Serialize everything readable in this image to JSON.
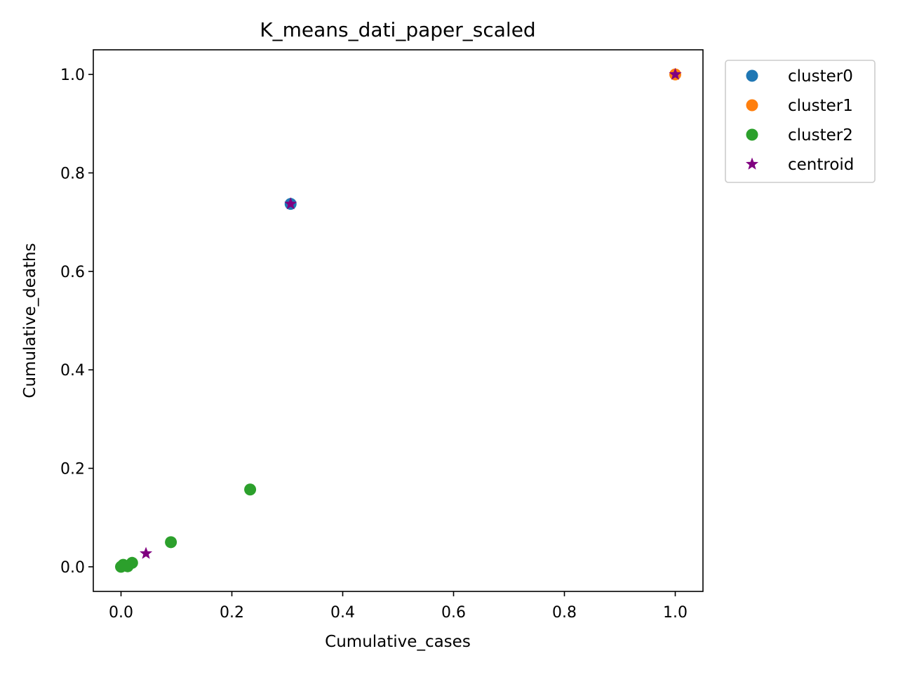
{
  "chart_data": {
    "type": "scatter",
    "title": "K_means_dati_paper_scaled",
    "xlabel": "Cumulative_cases",
    "ylabel": "Cumulative_deaths",
    "xlim": [
      -0.05,
      1.05
    ],
    "ylim": [
      -0.05,
      1.05
    ],
    "xticks": [
      "0.0",
      "0.2",
      "0.4",
      "0.6",
      "0.8",
      "1.0"
    ],
    "yticks": [
      "0.0",
      "0.2",
      "0.4",
      "0.6",
      "0.8",
      "1.0"
    ],
    "grid": false,
    "legend_position": "outside-top-right",
    "series": [
      {
        "name": "cluster0",
        "color": "#1f77b4",
        "marker": "circle",
        "points": [
          [
            0.306,
            0.737
          ]
        ]
      },
      {
        "name": "cluster1",
        "color": "#ff7f0e",
        "marker": "circle",
        "points": [
          [
            1.0,
            1.0
          ]
        ]
      },
      {
        "name": "cluster2",
        "color": "#2ca02c",
        "marker": "circle",
        "points": [
          [
            0.0,
            0.0
          ],
          [
            0.004,
            0.004
          ],
          [
            0.012,
            0.001
          ],
          [
            0.02,
            0.008
          ],
          [
            0.09,
            0.05
          ],
          [
            0.233,
            0.157
          ]
        ]
      },
      {
        "name": "centroid",
        "color": "#800080",
        "marker": "star",
        "points": [
          [
            0.306,
            0.737
          ],
          [
            1.0,
            1.0
          ],
          [
            0.045,
            0.027
          ]
        ]
      }
    ]
  }
}
